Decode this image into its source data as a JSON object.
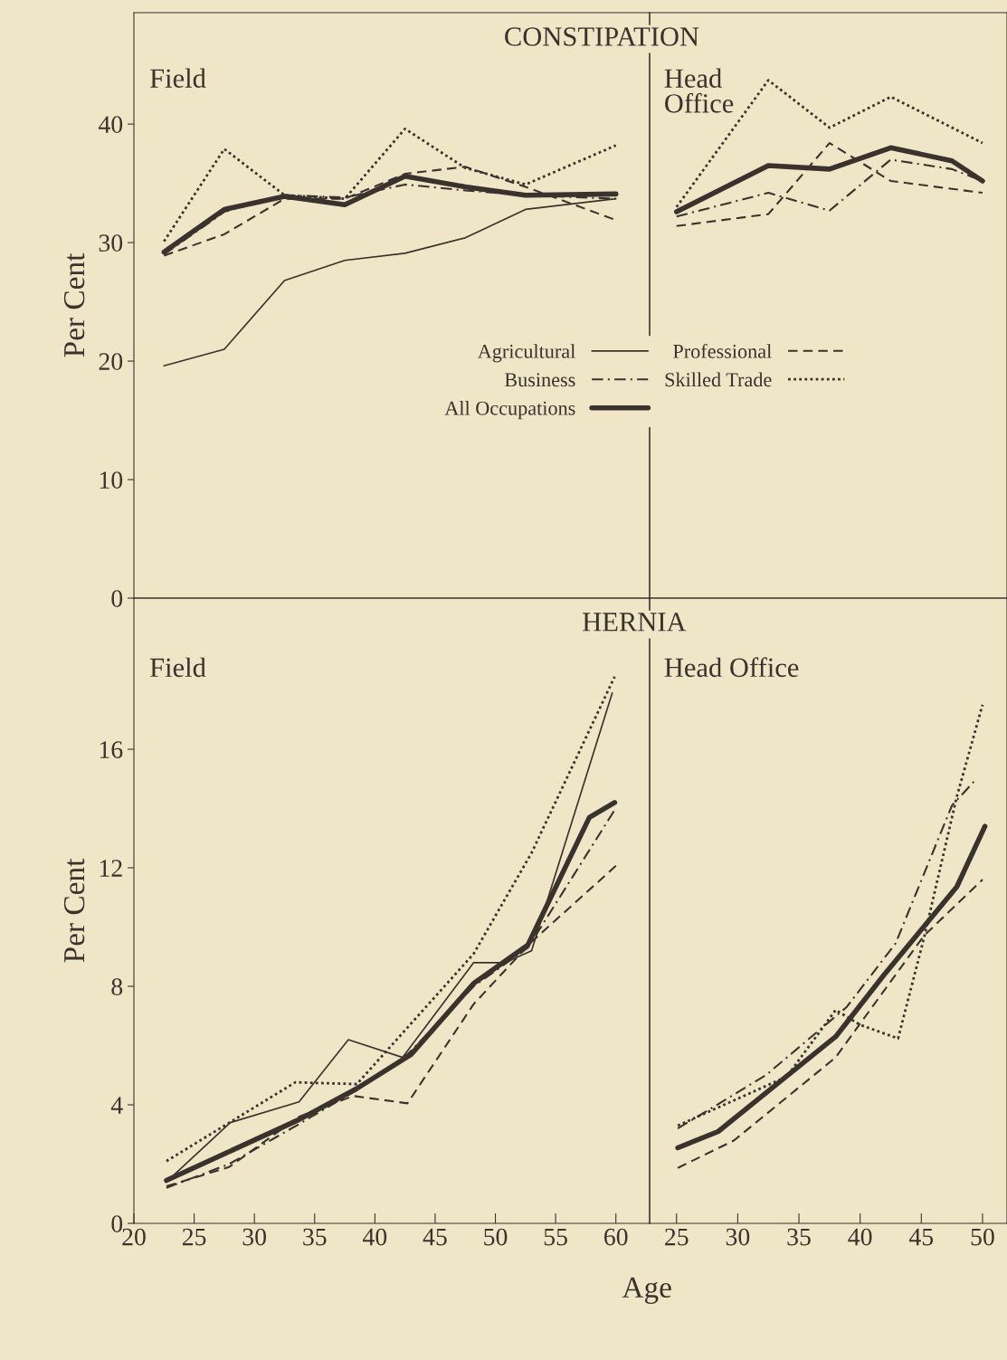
{
  "chart_data": [
    {
      "type": "line",
      "title": "CONSTIPATION",
      "subtitle": "Field",
      "ylabel": "Per Cent",
      "xlim": [
        20,
        62.8
      ],
      "ylim": [
        0,
        49.4
      ],
      "yticks": [
        0,
        10,
        20,
        30,
        40
      ],
      "tick_labels": "y",
      "grid": false,
      "legend": "center right",
      "marker": "none",
      "x": [
        22.5,
        27.5,
        32.5,
        37.5,
        42.5,
        47.5,
        52.5,
        60
      ],
      "series": [
        {
          "name": "Agricultural",
          "color": "#3a322c",
          "line_style": "solid",
          "values": [
            19.6,
            21.0,
            26.8,
            28.5,
            29.1,
            30.4,
            32.8,
            33.7
          ]
        },
        {
          "name": "Professional",
          "color": "#3a322c",
          "line_style": "dashed",
          "values": [
            28.9,
            30.7,
            33.7,
            33.7,
            35.8,
            36.4,
            34.7,
            31.9
          ]
        },
        {
          "name": "Business",
          "color": "#3a322c",
          "line_style": "dashdot",
          "values": [
            29.0,
            32.6,
            34.0,
            33.8,
            34.9,
            34.4,
            34.0,
            33.7
          ]
        },
        {
          "name": "Skilled Trade",
          "color": "#3a322c",
          "line_style": "dotted",
          "values": [
            30.1,
            37.9,
            34.0,
            33.7,
            39.6,
            36.3,
            34.9,
            38.2
          ]
        },
        {
          "name": "All Occupations",
          "color": "#3a322c",
          "line_style": "solid",
          "values": [
            29.2,
            32.8,
            33.9,
            33.2,
            35.6,
            34.7,
            34.0,
            34.1
          ]
        }
      ]
    },
    {
      "type": "line",
      "subtitle": "Head\nOffice",
      "xlim": [
        22.8,
        52
      ],
      "ylim": [
        0,
        49.4
      ],
      "yticks": [
        0,
        10,
        20,
        30,
        40
      ],
      "tick_labels": false,
      "grid": false,
      "marker": "none",
      "x": [
        25,
        32.5,
        37.5,
        42.5,
        47.5,
        50
      ],
      "series": [
        {
          "color": "#3a322c",
          "line_style": "dashed",
          "x": [
            25,
            32.5,
            37.5,
            42.5,
            50
          ],
          "values": [
            31.4,
            32.4,
            38.4,
            35.2,
            34.2
          ]
        },
        {
          "color": "#3a322c",
          "line_style": "dashdot",
          "values": [
            32.2,
            34.2,
            32.7,
            37.0,
            36.2,
            35.2
          ]
        },
        {
          "color": "#3a322c",
          "line_style": "dotted",
          "x": [
            25,
            32.5,
            37.5,
            42.5,
            50
          ],
          "values": [
            33.0,
            43.7,
            39.7,
            42.3,
            38.4
          ]
        },
        {
          "color": "#3a322c",
          "line_style": "solid",
          "values": [
            32.6,
            36.5,
            36.2,
            38.0,
            36.9,
            35.2
          ]
        }
      ]
    },
    {
      "type": "line",
      "title": "HERNIA",
      "subtitle": "Field",
      "ylabel": "Per Cent",
      "xlabel": "Age",
      "xlim": [
        20,
        62.8
      ],
      "ylim": [
        0,
        21.1
      ],
      "yticks": [
        0,
        4,
        8,
        12,
        16
      ],
      "xticks": [
        20,
        25,
        30,
        35,
        40,
        45,
        50,
        55,
        60
      ],
      "grid": false,
      "marker": "none",
      "series": [
        {
          "color": "#3a322c",
          "line_style": "solid",
          "x": [
            22.7,
            28.0,
            33.7,
            37.8,
            42.3,
            48.2,
            50.8,
            53.0,
            59.7
          ],
          "values": [
            1.4,
            3.4,
            4.1,
            6.2,
            5.6,
            8.8,
            8.8,
            9.2,
            17.9
          ]
        },
        {
          "color": "#3a322c",
          "line_style": "dashed",
          "x": [
            22.7,
            27.9,
            33.7,
            38.2,
            42.7,
            48.2,
            53.0,
            60.1
          ],
          "values": [
            1.25,
            1.9,
            3.6,
            4.3,
            4.05,
            7.4,
            9.5,
            12.1
          ]
        },
        {
          "color": "#3a322c",
          "line_style": "dashdot",
          "x": [
            22.7,
            27.9,
            33.7,
            38.5,
            42.7,
            48.2,
            52.7,
            59.9
          ],
          "values": [
            1.2,
            2.0,
            3.35,
            4.5,
            5.7,
            8.0,
            9.3,
            13.95
          ]
        },
        {
          "color": "#3a322c",
          "line_style": "dotted",
          "x": [
            22.7,
            33.4,
            38.5,
            48.2,
            53.0,
            59.9
          ],
          "values": [
            2.1,
            4.76,
            4.7,
            9.1,
            12.5,
            18.45
          ]
        },
        {
          "color": "#3a322c",
          "line_style": "solid",
          "x": [
            22.7,
            33.7,
            38.5,
            43.0,
            48.2,
            52.7,
            57.8,
            59.9
          ],
          "values": [
            1.45,
            3.5,
            4.55,
            5.7,
            8.1,
            9.4,
            13.7,
            14.2
          ]
        }
      ]
    },
    {
      "type": "line",
      "subtitle": "Head Office",
      "xlim": [
        22.8,
        52
      ],
      "ylim": [
        0,
        21.1
      ],
      "yticks": [
        0,
        4,
        8,
        12,
        16
      ],
      "xticks": [
        25,
        30,
        35,
        40,
        45,
        50
      ],
      "tick_labels": "x",
      "grid": false,
      "marker": "none",
      "series": [
        {
          "color": "#3a322c",
          "line_style": "dashed",
          "x": [
            25.1,
            29.7,
            38.0,
            45.2,
            50.0
          ],
          "values": [
            1.87,
            2.8,
            5.6,
            9.7,
            11.6
          ]
        },
        {
          "color": "#3a322c",
          "line_style": "dashdot",
          "x": [
            25.1,
            32.3,
            38.9,
            42.9,
            47.5,
            49.5
          ],
          "values": [
            3.2,
            5.0,
            7.3,
            9.45,
            14.1,
            15.0
          ]
        },
        {
          "color": "#3a322c",
          "line_style": "dotted",
          "x": [
            25.1,
            34.0,
            38.0,
            40.0,
            43.1,
            45.2,
            47.9,
            50.0
          ],
          "values": [
            3.3,
            4.95,
            7.2,
            6.7,
            6.24,
            9.6,
            14.4,
            17.5
          ]
        },
        {
          "color": "#3a322c",
          "line_style": "solid",
          "x": [
            25.1,
            28.4,
            32.3,
            38.0,
            41.9,
            47.9,
            50.2
          ],
          "values": [
            2.55,
            3.1,
            4.4,
            6.3,
            8.36,
            11.36,
            13.4
          ]
        }
      ]
    }
  ]
}
